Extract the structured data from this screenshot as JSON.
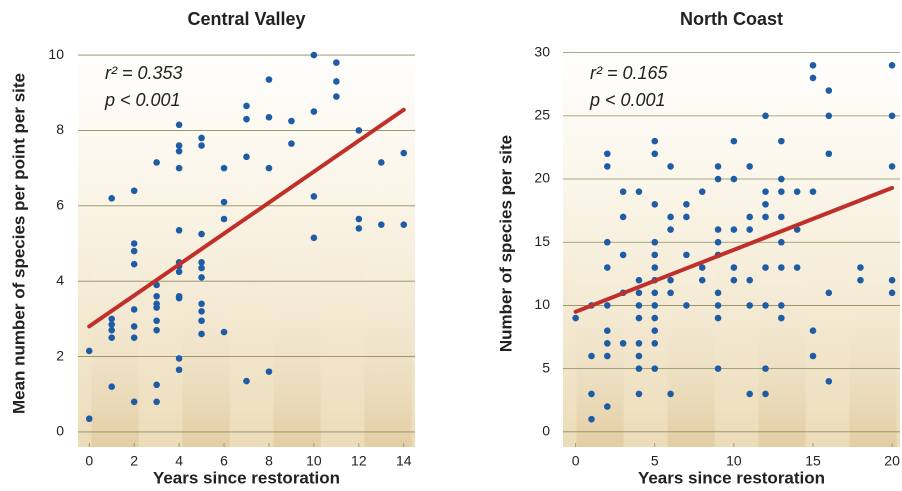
{
  "chart_data": [
    {
      "type": "scatter",
      "title": "Central Valley",
      "xlabel": "Years since restoration",
      "ylabel": "Mean number of species per point per site",
      "xlim": [
        -0.5,
        14.5
      ],
      "ylim": [
        -0.4,
        10.4
      ],
      "xticks": [
        0,
        2,
        4,
        6,
        8,
        10,
        12,
        14
      ],
      "yticks": [
        0,
        2,
        4,
        6,
        8,
        10
      ],
      "grid": true,
      "color": "#1f5ca6",
      "x": [
        0,
        0,
        1,
        1,
        1,
        1,
        1,
        1,
        2,
        2,
        2,
        2,
        2,
        2,
        2,
        2,
        3,
        3,
        3,
        3,
        3,
        3,
        3,
        3,
        3,
        4,
        4,
        4,
        4,
        4,
        4,
        4,
        4,
        4,
        4,
        4,
        4,
        5,
        5,
        5,
        5,
        5,
        5,
        5,
        5,
        5,
        5,
        6,
        6,
        6,
        6,
        7,
        7,
        7,
        7,
        8,
        8,
        8,
        8,
        9,
        9,
        10,
        10,
        10,
        10,
        11,
        11,
        11,
        12,
        12,
        12,
        13,
        13,
        14,
        14
      ],
      "y": [
        2.15,
        0.35,
        6.2,
        3.0,
        2.85,
        2.7,
        2.5,
        1.2,
        6.4,
        5.0,
        4.8,
        4.45,
        3.25,
        2.8,
        2.5,
        0.8,
        7.15,
        3.9,
        3.6,
        3.4,
        3.3,
        2.95,
        2.7,
        1.25,
        0.8,
        8.15,
        7.6,
        7.45,
        7.0,
        5.35,
        4.5,
        4.4,
        4.25,
        3.6,
        3.55,
        1.95,
        1.65,
        7.8,
        7.6,
        5.25,
        4.5,
        4.35,
        4.1,
        3.4,
        3.2,
        2.95,
        2.6,
        7.0,
        6.1,
        5.65,
        2.65,
        8.65,
        8.3,
        7.3,
        1.35,
        9.35,
        8.35,
        7.0,
        1.6,
        8.25,
        7.65,
        10.0,
        8.5,
        6.25,
        5.15,
        9.8,
        9.3,
        8.9,
        8.0,
        5.65,
        5.4,
        7.15,
        5.5,
        7.4,
        5.5
      ],
      "fit": {
        "x": [
          0,
          14
        ],
        "y": [
          2.8,
          8.55
        ],
        "color": "#c0302a"
      },
      "annotations": [
        "r² = 0.353",
        "p < 0.001"
      ]
    },
    {
      "type": "scatter",
      "title": "North Coast",
      "xlabel": "Years since restoration",
      "ylabel": "Number of species per site",
      "xlim": [
        -0.8,
        20.5
      ],
      "ylim": [
        -1.2,
        31
      ],
      "xticks": [
        0,
        5,
        10,
        15,
        20
      ],
      "yticks": [
        0,
        5,
        10,
        15,
        20,
        25,
        30
      ],
      "grid": true,
      "color": "#1f5ca6",
      "x": [
        0,
        1,
        1,
        1,
        1,
        2,
        2,
        2,
        2,
        2,
        2,
        2,
        2,
        2,
        3,
        3,
        3,
        3,
        3,
        4,
        4,
        4,
        4,
        4,
        4,
        4,
        4,
        4,
        5,
        5,
        5,
        5,
        5,
        5,
        5,
        5,
        5,
        5,
        5,
        5,
        5,
        6,
        6,
        6,
        6,
        6,
        6,
        7,
        7,
        7,
        7,
        8,
        8,
        8,
        9,
        9,
        9,
        9,
        9,
        9,
        9,
        9,
        9,
        10,
        10,
        10,
        10,
        10,
        11,
        11,
        11,
        11,
        11,
        11,
        12,
        12,
        12,
        12,
        12,
        12,
        12,
        12,
        13,
        13,
        13,
        13,
        13,
        13,
        13,
        13,
        14,
        14,
        14,
        15,
        15,
        15,
        15,
        15,
        16,
        16,
        16,
        16,
        16,
        18,
        18,
        20,
        20,
        20,
        20,
        20
      ],
      "y": [
        9,
        10,
        6,
        3,
        1,
        22,
        21,
        15,
        13,
        10,
        8,
        7,
        6,
        2,
        19,
        17,
        14,
        11,
        7,
        19,
        12,
        11,
        10,
        9,
        7,
        6,
        5,
        3,
        23,
        22,
        18,
        15,
        14,
        13,
        12,
        11,
        10,
        9,
        8,
        7,
        5,
        21,
        17,
        16,
        12,
        11,
        3,
        18,
        17,
        14,
        10,
        19,
        13,
        12,
        21,
        20,
        16,
        15,
        14,
        11,
        10,
        9,
        5,
        23,
        20,
        16,
        13,
        12,
        21,
        17,
        16,
        12,
        10,
        3,
        25,
        19,
        18,
        17,
        13,
        10,
        5,
        3,
        23,
        20,
        19,
        17,
        15,
        13,
        10,
        9,
        19,
        16,
        13,
        29,
        28,
        19,
        8,
        6,
        27,
        25,
        22,
        11,
        4,
        13,
        12,
        29,
        25,
        21,
        12,
        11
      ],
      "fit": {
        "x": [
          0,
          20
        ],
        "y": [
          9.5,
          19.3
        ],
        "color": "#c0302a"
      },
      "annotations": [
        "r² = 0.165",
        "p < 0.001"
      ]
    }
  ]
}
